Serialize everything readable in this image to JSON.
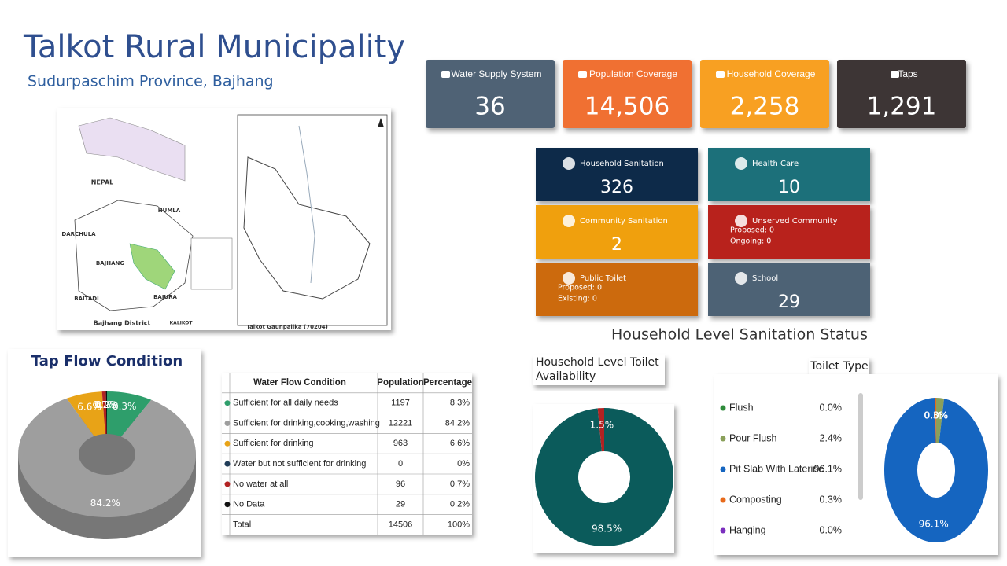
{
  "header": {
    "title": "Talkot Rural Municipality",
    "subtitle": "Sudurpaschim Province, Bajhang"
  },
  "kpis": [
    {
      "label": "Water Supply System",
      "value": "36"
    },
    {
      "label": "Population Coverage",
      "value": "14,506"
    },
    {
      "label": "Household Coverage",
      "value": "2,258"
    },
    {
      "label": "Taps",
      "value": "1,291"
    }
  ],
  "services": [
    {
      "label": "Household Sanitation",
      "value": "326"
    },
    {
      "label": "Health Care",
      "value": "10"
    },
    {
      "label": "Community Sanitation",
      "value": "2"
    },
    {
      "label": "Unserved Community",
      "lines": [
        "Proposed: 0",
        "Ongoing: 0"
      ]
    },
    {
      "label": "Public Toilet",
      "lines": [
        "Proposed: 0",
        "Existing: 0"
      ]
    },
    {
      "label": "School",
      "value": "29"
    }
  ],
  "map": {
    "labels": [
      "NEPAL",
      "HUMLA",
      "DARCHULA",
      "BAJHANG",
      "BAITADI",
      "BAJURA",
      "KALIKOT",
      "Bajhang District",
      "Talkot Gaunpalika (70204)"
    ]
  },
  "sanitation_heading": "Household Level Sanitation Status",
  "table": {
    "columns": [
      "Water Flow Condition",
      "Population",
      "Percentage"
    ],
    "rows": [
      [
        "Sufficient for all daily needs",
        "1197",
        "8.3%"
      ],
      [
        "Sufficient for drinking,cooking,washing",
        "12221",
        "84.2%"
      ],
      [
        "Sufficient for drinking",
        "963",
        "6.6%"
      ],
      [
        "Water but not sufficient for drinking",
        "0",
        "0%"
      ],
      [
        "No water at all",
        "96",
        "0.7%"
      ],
      [
        "No Data",
        "29",
        "0.2%"
      ],
      [
        "Total",
        "14506",
        "100%"
      ]
    ]
  },
  "chart_data": [
    {
      "type": "pie",
      "title": "Tap Flow Condition",
      "values": [
        8.3,
        84.2,
        6.6,
        0,
        0.7,
        0.2
      ],
      "value_labels": [
        "8.3%",
        "84.2%",
        "6.6%",
        "0%",
        "0.7%",
        "0.2%"
      ],
      "colors": [
        "#2e9e6b",
        "#9e9e9e",
        "#e8a317",
        "#1f3b57",
        "#b22222",
        "#111111"
      ]
    },
    {
      "type": "donut",
      "title": "Household Level Toilet Availability",
      "values": [
        98.5,
        1.5
      ],
      "value_labels": [
        "98.5%",
        "1.5%"
      ],
      "colors": [
        "#0b5b5b",
        "#b22222"
      ]
    },
    {
      "type": "donut",
      "title": "Toilet Type",
      "categories": [
        "Flush",
        "Pour Flush",
        "Pit Slab With Laterine",
        "Composting",
        "Hanging"
      ],
      "values": [
        0.0,
        2.4,
        96.1,
        0.3,
        0.0
      ],
      "value_labels": [
        "0.0%",
        "2.4%",
        "96.1%",
        "0.3%",
        "0.0%"
      ],
      "colors": [
        "#2e8b3a",
        "#8aa05a",
        "#1565c0",
        "#e86a1a",
        "#7b2fbe"
      ],
      "legend": "left"
    }
  ]
}
